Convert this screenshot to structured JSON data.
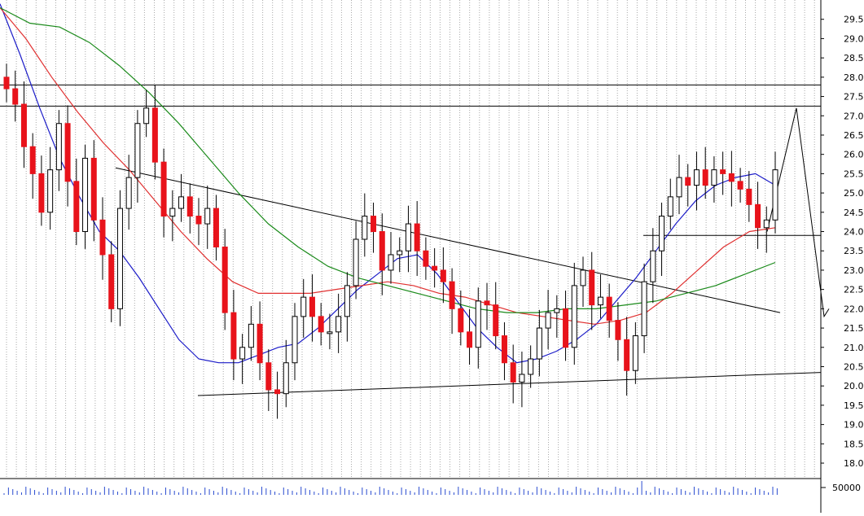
{
  "chart_data": {
    "type": "candlestick",
    "y_axis": {
      "side": "right",
      "ticks": [
        18.0,
        18.5,
        19.0,
        19.5,
        20.0,
        20.5,
        21.0,
        21.5,
        22.0,
        22.5,
        23.0,
        23.5,
        24.0,
        24.5,
        25.0,
        25.5,
        26.0,
        26.5,
        27.0,
        27.5,
        28.0,
        28.5,
        29.0,
        29.5
      ],
      "tick_labels": [
        "18.0",
        "18.5",
        "19.0",
        "19.5",
        "20.0",
        "20.5",
        "21.0",
        "21.5",
        "22.0",
        "22.5",
        "23.0",
        "23.5",
        "24.0",
        "24.5",
        "25.0",
        "25.5",
        "26.0",
        "26.5",
        "27.0",
        "27.5",
        "28.0",
        "28.5",
        "29.0",
        "29.5"
      ],
      "range": [
        17.6,
        30.0
      ]
    },
    "volume_axis": {
      "tick_labels": [
        "50000"
      ]
    },
    "grid": "vertical-dotted",
    "colors": {
      "up": "#ffffff",
      "down": "#e8131b",
      "doji": "#000000",
      "ma_fast": "#1c1cc8",
      "ma_mid": "#e03030",
      "ma_slow": "#1a8a1a",
      "trendline": "#000000"
    },
    "price_points_close": [
      27.7,
      27.3,
      26.2,
      25.5,
      24.5,
      25.6,
      26.8,
      25.3,
      24.0,
      25.9,
      24.3,
      23.4,
      22.0,
      24.6,
      25.4,
      26.8,
      27.2,
      25.8,
      24.4,
      24.6,
      24.9,
      24.4,
      24.2,
      24.6,
      23.6,
      21.9,
      20.7,
      21.0,
      21.6,
      20.6,
      19.9,
      19.8,
      20.6,
      21.8,
      22.3,
      21.8,
      21.4,
      21.4,
      21.8,
      22.6,
      23.8,
      24.4,
      24.0,
      23.0,
      23.4,
      23.5,
      24.2,
      23.5,
      23.1,
      23.0,
      22.7,
      22.0,
      21.4,
      21.0,
      22.2,
      22.1,
      21.3,
      20.6,
      20.1,
      20.3,
      20.7,
      21.5,
      21.9,
      22.0,
      21.0,
      22.6,
      23.0,
      22.1,
      22.3,
      21.7,
      21.2,
      20.4,
      21.3,
      22.7,
      23.5,
      24.4,
      24.9,
      25.4,
      25.2,
      25.6,
      25.2,
      25.6,
      25.5,
      25.3,
      25.1,
      24.7,
      24.1,
      24.3,
      25.6
    ],
    "moving_averages": {
      "fast": [
        29.9,
        28.6,
        27.2,
        25.9,
        24.9,
        24.0,
        23.5,
        22.8,
        22.0,
        21.2,
        20.7,
        20.6,
        20.6,
        20.8,
        21.0,
        21.1,
        21.5,
        22.0,
        22.5,
        22.9,
        23.3,
        23.4,
        22.9,
        22.2,
        21.5,
        21.0,
        20.6,
        20.7,
        20.9,
        21.2,
        21.6,
        22.2,
        22.8,
        23.5,
        24.2,
        24.8,
        25.2,
        25.4,
        25.5,
        25.2
      ],
      "mid": [
        29.8,
        29.0,
        28.0,
        27.1,
        26.3,
        25.6,
        24.8,
        24.0,
        23.3,
        22.7,
        22.4,
        22.4,
        22.4,
        22.5,
        22.6,
        22.7,
        22.6,
        22.4,
        22.3,
        22.1,
        21.9,
        21.8,
        21.7,
        21.6,
        21.7,
        21.9,
        22.4,
        23.0,
        23.6,
        24.0,
        24.1
      ],
      "slow": [
        29.8,
        29.4,
        29.3,
        28.9,
        28.3,
        27.6,
        26.8,
        25.9,
        25.0,
        24.2,
        23.6,
        23.1,
        22.8,
        22.6,
        22.4,
        22.2,
        22.0,
        21.9,
        21.9,
        22.0,
        22.0,
        22.1,
        22.2,
        22.4,
        22.6,
        22.9,
        23.2
      ]
    },
    "trendlines": [
      {
        "name": "resistance-horizontal-upper",
        "y": 27.8
      },
      {
        "name": "resistance-horizontal",
        "y": 27.25
      },
      {
        "name": "descending-trendline",
        "from": 25.65,
        "to": 21.9
      },
      {
        "name": "ascending-support",
        "from": 19.75,
        "to": 20.35
      },
      {
        "name": "range-support",
        "y": 23.9
      },
      {
        "name": "projection",
        "points": [
          24.0,
          27.2,
          21.8,
          22.0
        ]
      }
    ],
    "volume_peak_label": "50000"
  }
}
